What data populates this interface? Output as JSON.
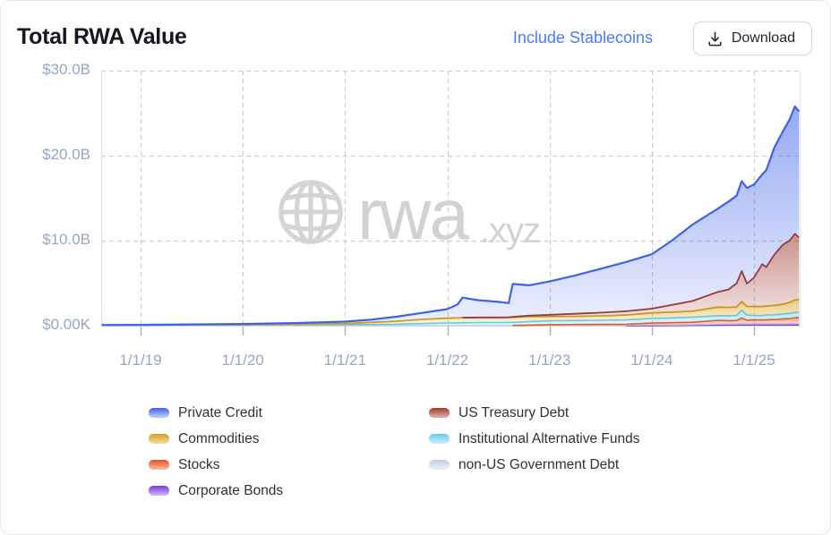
{
  "header": {
    "title": "Total RWA Value",
    "toggle_label": "Include Stablecoins",
    "download_label": "Download"
  },
  "watermark": {
    "name": "rwa",
    "suffix": ".xyz"
  },
  "legend": {
    "columns": [
      [
        "Private Credit",
        "Commodities",
        "Stocks",
        "Corporate Bonds"
      ],
      [
        "US Treasury Debt",
        "Institutional Alternative Funds",
        "non-US Government Debt"
      ]
    ]
  },
  "colors": {
    "accent_link": "#4b7bf6",
    "axis_label": "#96a6c8",
    "grid": "#c9cdd5"
  },
  "chart_data": {
    "type": "area",
    "stacked": true,
    "unit": "USD billions",
    "x_domain": [
      2018.615,
      2025.455
    ],
    "ylim": [
      0,
      30
    ],
    "y_tick_values": [
      30,
      20,
      10,
      0
    ],
    "y_tick_labels": [
      "$30.0B",
      "$20.0B",
      "$10.0B",
      "$0.00K"
    ],
    "x_tick_values": [
      2019,
      2020,
      2021,
      2022,
      2023,
      2024,
      2025
    ],
    "x_tick_labels": [
      "1/1/19",
      "1/1/20",
      "1/1/21",
      "1/1/22",
      "1/1/23",
      "1/1/24",
      "1/1/25"
    ],
    "x": [
      2018.62,
      2019.0,
      2019.5,
      2020.0,
      2020.5,
      2021.0,
      2021.25,
      2021.5,
      2021.75,
      2022.0,
      2022.1,
      2022.15,
      2022.3,
      2022.5,
      2022.6,
      2022.64,
      2022.8,
      2023.0,
      2023.25,
      2023.5,
      2023.75,
      2024.0,
      2024.2,
      2024.4,
      2024.65,
      2024.75,
      2024.83,
      2024.88,
      2024.93,
      2025.0,
      2025.08,
      2025.12,
      2025.2,
      2025.28,
      2025.35,
      2025.4,
      2025.44
    ],
    "series": [
      {
        "name": "Corporate Bonds",
        "color": "#7e35e2",
        "light": "#c9aef5",
        "values": [
          0,
          0,
          0,
          0,
          0,
          0,
          0,
          0,
          0,
          0,
          0,
          0,
          0,
          0,
          0,
          0,
          0,
          0,
          0,
          0,
          0,
          0.02,
          0.04,
          0.05,
          0.08,
          0.09,
          0.09,
          0.1,
          0.1,
          0.1,
          0.1,
          0.1,
          0.1,
          0.1,
          0.1,
          0.1,
          0.1
        ]
      },
      {
        "name": "non-US Government Debt",
        "color": "#c3cfe2",
        "light": "#e6ecf4",
        "values": [
          0,
          0,
          0,
          0,
          0,
          0.01,
          0.01,
          0.02,
          0.02,
          0.02,
          0.02,
          0.02,
          0.03,
          0.03,
          0.03,
          0.03,
          0.04,
          0.04,
          0.05,
          0.05,
          0.05,
          0.06,
          0.06,
          0.07,
          0.1,
          0.1,
          0.1,
          0.12,
          0.1,
          0.12,
          0.12,
          0.12,
          0.13,
          0.13,
          0.14,
          0.15,
          0.15
        ]
      },
      {
        "name": "Stocks",
        "color": "#e54f22",
        "light": "#f6b49c",
        "values": [
          0,
          0,
          0,
          0,
          0,
          0,
          0,
          0,
          0,
          0,
          0,
          0,
          0,
          0,
          0,
          0,
          0.02,
          0.08,
          0.09,
          0.1,
          0.12,
          0.22,
          0.25,
          0.28,
          0.45,
          0.4,
          0.42,
          0.7,
          0.45,
          0.48,
          0.45,
          0.48,
          0.5,
          0.55,
          0.6,
          0.68,
          0.73
        ]
      },
      {
        "name": "Institutional Alternative Funds",
        "color": "#5fccf0",
        "light": "#c6ecfa",
        "values": [
          0.06,
          0.07,
          0.08,
          0.08,
          0.1,
          0.12,
          0.13,
          0.15,
          0.22,
          0.3,
          0.31,
          0.32,
          0.33,
          0.34,
          0.35,
          0.35,
          0.4,
          0.45,
          0.46,
          0.48,
          0.5,
          0.55,
          0.56,
          0.6,
          0.55,
          0.56,
          0.58,
          0.9,
          0.6,
          0.5,
          0.52,
          0.54,
          0.55,
          0.58,
          0.6,
          0.62,
          0.6
        ]
      },
      {
        "name": "Commodities",
        "color": "#d2a018",
        "light": "#eed9a0",
        "values": [
          0,
          0.01,
          0.02,
          0.03,
          0.06,
          0.1,
          0.25,
          0.35,
          0.5,
          0.55,
          0.57,
          0.6,
          0.6,
          0.58,
          0.58,
          0.6,
          0.62,
          0.5,
          0.5,
          0.52,
          0.58,
          0.65,
          0.68,
          0.7,
          1.0,
          1.0,
          1.0,
          1.0,
          1.0,
          1.05,
          1.05,
          1.05,
          1.1,
          1.15,
          1.3,
          1.45,
          1.5
        ]
      },
      {
        "name": "US Treasury Debt",
        "color": "#9e372b",
        "light": "#dcaaa3",
        "values": [
          0,
          0,
          0,
          0,
          0,
          0,
          0,
          0,
          0,
          0,
          0,
          0,
          0.01,
          0.02,
          0.03,
          0.05,
          0.1,
          0.2,
          0.3,
          0.38,
          0.45,
          0.5,
          0.85,
          1.2,
          1.8,
          2.1,
          2.8,
          3.6,
          2.7,
          3.4,
          5.0,
          4.6,
          6.0,
          7.0,
          7.3,
          7.8,
          7.3
        ]
      },
      {
        "name": "Private Credit",
        "color": "#3f63e8",
        "light": "#b9c8fa",
        "values": [
          0.02,
          0.02,
          0.05,
          0.09,
          0.14,
          0.24,
          0.31,
          0.53,
          0.76,
          1.08,
          1.6,
          2.36,
          2.03,
          1.83,
          1.66,
          3.87,
          3.57,
          3.93,
          4.5,
          5.17,
          5.8,
          6.4,
          7.6,
          9.0,
          9.82,
          10.35,
          10.31,
          10.58,
          11.25,
          10.95,
          10.56,
          11.41,
          12.62,
          13.29,
          14.26,
          15.0,
          14.82
        ]
      }
    ]
  }
}
